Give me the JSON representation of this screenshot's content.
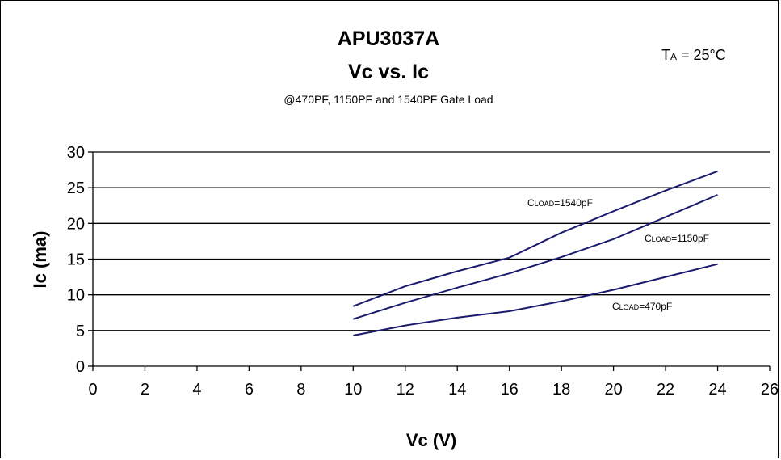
{
  "chart_data": {
    "type": "line",
    "title": "APU3037A",
    "subtitle": "Vc vs. Ic",
    "caption": "@470PF, 1150PF and 1540PF Gate Load",
    "annotation": {
      "main": "T",
      "sub": "A",
      "rest": " = 25°C"
    },
    "xlabel": "Vc (V)",
    "ylabel": "Ic (ma)",
    "xlim": [
      0,
      26
    ],
    "ylim": [
      0,
      30
    ],
    "xticks": [
      0,
      2,
      4,
      6,
      8,
      10,
      12,
      14,
      16,
      18,
      20,
      22,
      24,
      26
    ],
    "yticks": [
      0,
      5,
      10,
      15,
      20,
      25,
      30
    ],
    "grid": "horizontal",
    "line_color": "#1a1a6e",
    "x": [
      10,
      12,
      14,
      16,
      18,
      20,
      22,
      24
    ],
    "series": [
      {
        "name": "CLOAD=1540pF",
        "label_main": "C",
        "label_sub": "LOAD",
        "label_rest": "=1540pF",
        "values": [
          8.4,
          11.2,
          13.3,
          15.2,
          18.7,
          21.7,
          24.6,
          27.3
        ]
      },
      {
        "name": "CLOAD=1150pF",
        "label_main": "C",
        "label_sub": "LOAD",
        "label_rest": "=1150pF",
        "values": [
          6.6,
          8.9,
          11.0,
          13.0,
          15.3,
          17.8,
          20.9,
          24.0
        ]
      },
      {
        "name": "CLOAD=470pF",
        "label_main": "C",
        "label_sub": "LOAD",
        "label_rest": "=470pF",
        "values": [
          4.3,
          5.7,
          6.8,
          7.7,
          9.1,
          10.7,
          12.5,
          14.3
        ]
      }
    ]
  }
}
